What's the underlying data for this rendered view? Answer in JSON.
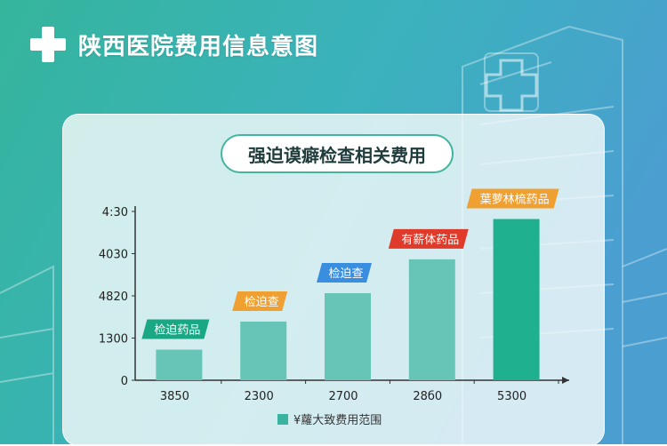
{
  "header": {
    "title": "陕西医院费用信息意图",
    "icon": "medical-cross-icon"
  },
  "colors": {
    "bar": "#67c5b7",
    "bar_highlight": "#1fb08f",
    "axis": "#333333",
    "label_green": "#1aa783",
    "label_orange": "#f0a030",
    "label_blue": "#3a8ee0",
    "label_red": "#e03a2a"
  },
  "chart_data": {
    "type": "bar",
    "title": "强迫谟癖检查相关费用",
    "legend": "¥蘿大致费用范围",
    "legend_position": "bottom",
    "y_tick_labels": [
      "0",
      "1300",
      "4820",
      "4030",
      "4:30"
    ],
    "x_tick_labels": [
      "3850",
      "2300",
      "2700",
      "28б0",
      "5300"
    ],
    "values": [
      950,
      1820,
      2700,
      3750,
      5000
    ],
    "bar_labels": [
      "检迫药品",
      "检迫查",
      "检迫查",
      "有薪体药品",
      "葉萝林梳药品"
    ],
    "ylim": [
      0,
      5400
    ]
  }
}
